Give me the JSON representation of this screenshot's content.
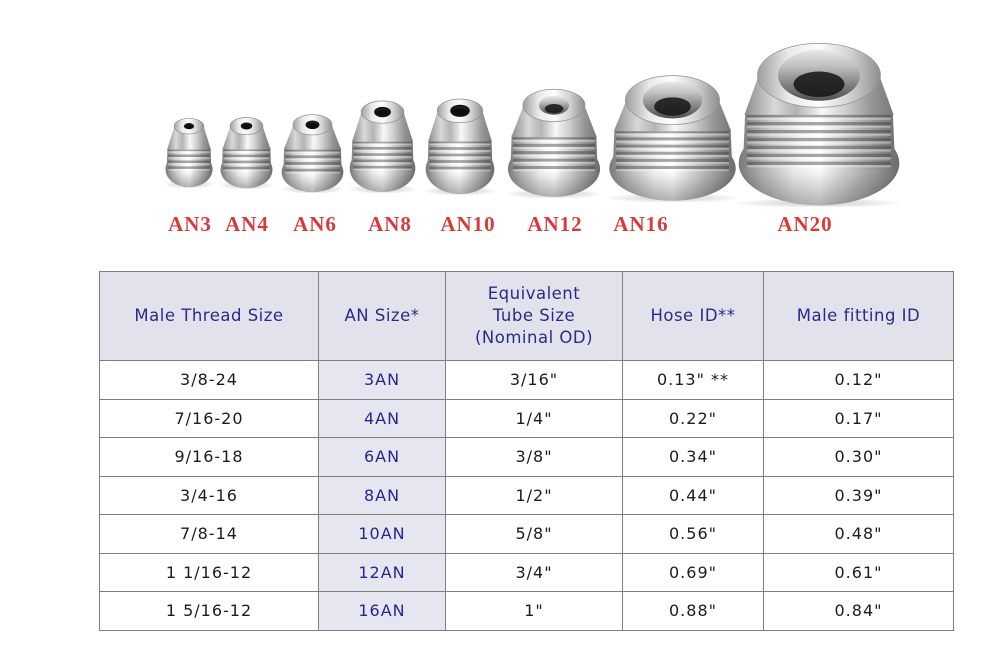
{
  "gallery": {
    "fittings": [
      {
        "label": "AN3"
      },
      {
        "label": "AN4"
      },
      {
        "label": "AN6"
      },
      {
        "label": "AN8"
      },
      {
        "label": "AN10"
      },
      {
        "label": "AN12"
      },
      {
        "label": "AN16"
      },
      {
        "label": "AN20"
      }
    ],
    "label_color": "#d93a3a"
  },
  "spec_table": {
    "columns": [
      "Male Thread Size",
      "AN Size*",
      "Equivalent\nTube Size\n(Nominal OD)",
      "Hose ID**",
      "Male fitting ID"
    ],
    "rows": [
      [
        "3/8-24",
        "3AN",
        "3/16\"",
        "0.13\" **",
        "0.12\""
      ],
      [
        "7/16-20",
        "4AN",
        "1/4\"",
        "0.22\"",
        "0.17\""
      ],
      [
        "9/16-18",
        "6AN",
        "3/8\"",
        "0.34\"",
        "0.30\""
      ],
      [
        "3/4-16",
        "8AN",
        "1/2\"",
        "0.44\"",
        "0.39\""
      ],
      [
        "7/8-14",
        "10AN",
        "5/8\"",
        "0.56\"",
        "0.48\""
      ],
      [
        "1 1/16-12",
        "12AN",
        "3/4\"",
        "0.69\"",
        "0.61\""
      ],
      [
        "1 5/16-12",
        "16AN",
        "1\"",
        "0.88\"",
        "0.84\""
      ]
    ],
    "colors": {
      "header_bg": "#e2e2ec",
      "header_text": "#2b2b85",
      "an_cell_bg": "#e6e6f1",
      "an_text": "#26268c",
      "cell_text": "#1c1c1c",
      "border": "#7f7f7f"
    }
  }
}
